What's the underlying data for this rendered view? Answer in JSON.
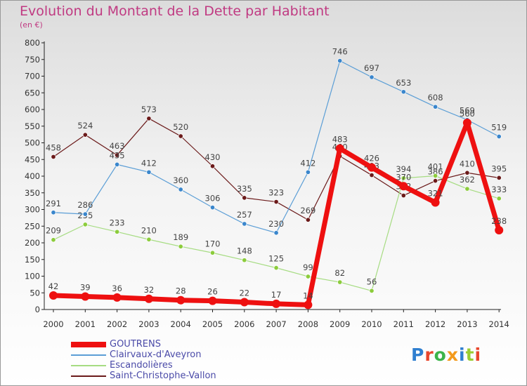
{
  "title": "Evolution du Montant de la Dette par Habitant",
  "subtitle": "(en €)",
  "logo": {
    "text": "Proxiti",
    "colors": [
      "#2f7fd0",
      "#e8462c",
      "#3cb44a",
      "#f39a1b",
      "#2f7fd0",
      "#9acd32",
      "#e8462c"
    ]
  },
  "chart_data": {
    "type": "line",
    "categories": [
      "2000",
      "2001",
      "2002",
      "2003",
      "2004",
      "2005",
      "2006",
      "2007",
      "2008",
      "2009",
      "2010",
      "2011",
      "2012",
      "2013",
      "2014"
    ],
    "ylim": [
      0,
      800
    ],
    "yticks": [
      0,
      50,
      100,
      150,
      200,
      250,
      300,
      350,
      400,
      450,
      500,
      550,
      600,
      650,
      700,
      750,
      800
    ],
    "grid": false,
    "legend_position": "bottom-left",
    "series": [
      {
        "name": "Saint-Christophe-Vallon",
        "color": "#6b1a1a",
        "dot": "#6b1a1a",
        "width": 1.2,
        "labels": true,
        "values": [
          458,
          524,
          463,
          573,
          520,
          430,
          335,
          323,
          269,
          460,
          403,
          342,
          386,
          410,
          395
        ]
      },
      {
        "name": "Escandolières",
        "color": "#a6dc82",
        "dot": "#8ccc3c",
        "width": 1.2,
        "labels": true,
        "values": [
          209,
          255,
          233,
          210,
          189,
          170,
          148,
          125,
          99,
          82,
          56,
          394,
          401,
          362,
          333
        ]
      },
      {
        "name": "Clairvaux-d'Aveyron",
        "color": "#5b9ed6",
        "dot": "#3a86cc",
        "width": 1.2,
        "labels": true,
        "values": [
          291,
          286,
          435,
          412,
          360,
          306,
          257,
          230,
          412,
          746,
          697,
          653,
          608,
          569,
          519
        ]
      },
      {
        "name": "GOUTRENS",
        "color": "#ee1010",
        "dot": "#ee1010",
        "width": 7,
        "labels": true,
        "values": [
          42,
          39,
          36,
          32,
          28,
          26,
          22,
          17,
          14,
          483,
          426,
          370,
          321,
          560,
          238
        ]
      }
    ],
    "legend_order": [
      "GOUTRENS",
      "Clairvaux-d'Aveyron",
      "Escandolières",
      "Saint-Christophe-Vallon"
    ]
  }
}
